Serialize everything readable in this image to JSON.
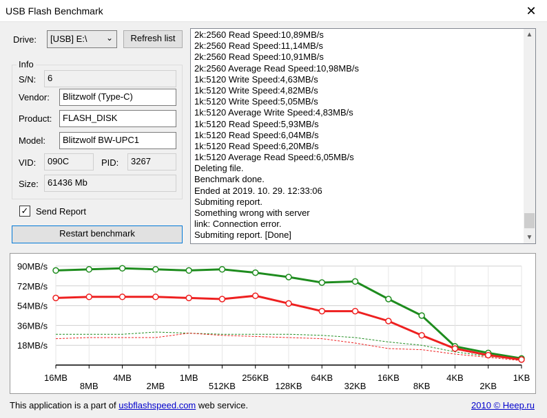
{
  "window": {
    "title": "USB Flash Benchmark",
    "close": "✕"
  },
  "drive": {
    "label": "Drive:",
    "value": "[USB] E:\\",
    "refresh": "Refresh list"
  },
  "info": {
    "title": "Info",
    "sn_label": "S/N:",
    "sn": "6",
    "vendor_label": "Vendor:",
    "vendor": "Blitzwolf (Type-C)",
    "product_label": "Product:",
    "product": "FLASH_DISK",
    "model_label": "Model:",
    "model": "Blitzwolf BW-UPC1",
    "vid_label": "VID:",
    "vid": "090C",
    "pid_label": "PID:",
    "pid": "3267",
    "size_label": "Size:",
    "size": "61436 Mb"
  },
  "send_report": {
    "label": "Send Report",
    "checked": true
  },
  "restart": "Restart benchmark",
  "log": [
    "2k:2560 Read Speed:10,89MB/s",
    "2k:2560 Read Speed:11,14MB/s",
    "2k:2560 Read Speed:10,91MB/s",
    "2k:2560 Average Read Speed:10,98MB/s",
    "1k:5120 Write Speed:4,63MB/s",
    "1k:5120 Write Speed:4,82MB/s",
    "1k:5120 Write Speed:5,05MB/s",
    "1k:5120 Average Write Speed:4,83MB/s",
    "1k:5120 Read Speed:5,93MB/s",
    "1k:5120 Read Speed:6,04MB/s",
    "1k:5120 Read Speed:6,20MB/s",
    "1k:5120 Average Read Speed:6,05MB/s",
    "Deleting file.",
    "Benchmark done.",
    "Ended at 2019. 10. 29. 12:33:06",
    "Submiting report.",
    "Something wrong with server",
    "link: Connection error.",
    "Submiting report. [Done]"
  ],
  "chart_data": {
    "type": "line",
    "categories": [
      "16MB",
      "8MB",
      "4MB",
      "2MB",
      "1MB",
      "512KB",
      "256KB",
      "128KB",
      "64KB",
      "32KB",
      "16KB",
      "8KB",
      "4KB",
      "2KB",
      "1KB"
    ],
    "yticks": [
      "90MB/s",
      "72MB/s",
      "54MB/s",
      "36MB/s",
      "18MB/s"
    ],
    "ylim": [
      0,
      90
    ],
    "series": [
      {
        "color": "#1e8c1e",
        "style": "solid",
        "values": [
          86,
          87,
          88,
          87,
          86,
          87,
          84,
          80,
          75,
          76,
          60,
          45,
          17,
          11,
          6
        ]
      },
      {
        "color": "#ee2020",
        "style": "solid",
        "values": [
          61,
          62,
          62,
          62,
          61,
          60,
          63,
          56,
          49,
          49,
          40,
          27,
          15,
          9,
          5
        ]
      },
      {
        "color": "#1e8c1e",
        "style": "dashed",
        "values": [
          28,
          28,
          28,
          30,
          29,
          28,
          28,
          28,
          27,
          25,
          21,
          18,
          12,
          8,
          5
        ]
      },
      {
        "color": "#ee2020",
        "style": "dashed",
        "values": [
          24,
          25,
          25,
          25,
          29,
          27,
          26,
          25,
          24,
          20,
          15,
          14,
          10,
          7,
          4
        ]
      }
    ]
  },
  "footer": {
    "prefix": "This application is a part of ",
    "link": "usbflashspeed.com",
    "suffix": " web service.",
    "right": "2010 © Heep.ru"
  }
}
